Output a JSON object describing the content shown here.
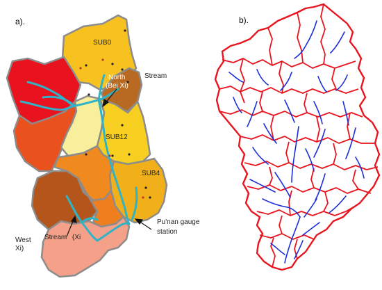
{
  "panels": {
    "a": {
      "label": "a).",
      "subbasins": [
        "SUB0",
        "SUB12",
        "SUB4"
      ],
      "annotations": {
        "north_line1": "North",
        "north_line2": "(Bei Xi)",
        "stream_north": "Stream",
        "west_line1": "West",
        "west_line2": "Xi)",
        "stream_west": "Stream",
        "xi_paren": "(Xi",
        "gauge_line1": "Pu'nan gauge",
        "gauge_line2": "station"
      }
    },
    "b": {
      "label": "b)."
    }
  },
  "colors": {
    "subbasin_outline": "#8c8c8c",
    "river": "#2fb3c8",
    "b_boundary": "#e8141e",
    "b_stream": "#1b2dd6",
    "red": "#e8141e",
    "orange_red": "#e8501e",
    "orange": "#f28a1e",
    "gold": "#f5b518",
    "yellow": "#f7d21f",
    "pale_yellow": "#f9ee9a",
    "brown": "#c0651e",
    "dark_orange": "#d95c18",
    "salmon": "#f6a088"
  }
}
